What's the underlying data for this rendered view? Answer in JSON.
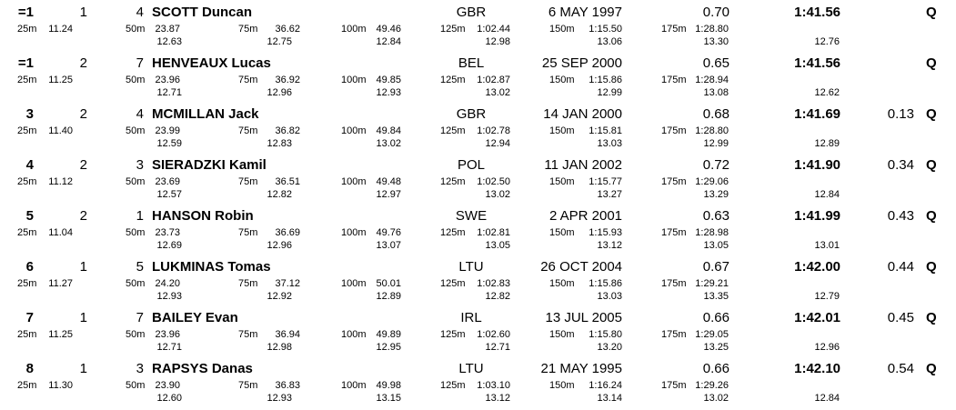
{
  "results": [
    {
      "rank": "=1",
      "heat": "1",
      "lane": "4",
      "name": "SCOTT Duncan",
      "nation": "GBR",
      "birth_date": "6 MAY 1997",
      "reaction": "0.70",
      "time": "1:41.56",
      "behind": "",
      "qualifier": "Q",
      "splits": [
        {
          "dist": "25m",
          "time": "11.24",
          "lap": ""
        },
        {
          "dist": "50m",
          "time": "23.87",
          "lap": "12.63"
        },
        {
          "dist": "75m",
          "time": "36.62",
          "lap": "12.75"
        },
        {
          "dist": "100m",
          "time": "49.46",
          "lap": "12.84"
        },
        {
          "dist": "125m",
          "time": "1:02.44",
          "lap": "12.98"
        },
        {
          "dist": "150m",
          "time": "1:15.50",
          "lap": "13.06"
        },
        {
          "dist": "175m",
          "time": "1:28.80",
          "lap": "13.30"
        },
        {
          "dist": "",
          "time": "",
          "lap": "12.76"
        }
      ]
    },
    {
      "rank": "=1",
      "heat": "2",
      "lane": "7",
      "name": "HENVEAUX Lucas",
      "nation": "BEL",
      "birth_date": "25 SEP 2000",
      "reaction": "0.65",
      "time": "1:41.56",
      "behind": "",
      "qualifier": "Q",
      "splits": [
        {
          "dist": "25m",
          "time": "11.25",
          "lap": ""
        },
        {
          "dist": "50m",
          "time": "23.96",
          "lap": "12.71"
        },
        {
          "dist": "75m",
          "time": "36.92",
          "lap": "12.96"
        },
        {
          "dist": "100m",
          "time": "49.85",
          "lap": "12.93"
        },
        {
          "dist": "125m",
          "time": "1:02.87",
          "lap": "13.02"
        },
        {
          "dist": "150m",
          "time": "1:15.86",
          "lap": "12.99"
        },
        {
          "dist": "175m",
          "time": "1:28.94",
          "lap": "13.08"
        },
        {
          "dist": "",
          "time": "",
          "lap": "12.62"
        }
      ]
    },
    {
      "rank": "3",
      "heat": "2",
      "lane": "4",
      "name": "MCMILLAN Jack",
      "nation": "GBR",
      "birth_date": "14 JAN 2000",
      "reaction": "0.68",
      "time": "1:41.69",
      "behind": "0.13",
      "qualifier": "Q",
      "splits": [
        {
          "dist": "25m",
          "time": "11.40",
          "lap": ""
        },
        {
          "dist": "50m",
          "time": "23.99",
          "lap": "12.59"
        },
        {
          "dist": "75m",
          "time": "36.82",
          "lap": "12.83"
        },
        {
          "dist": "100m",
          "time": "49.84",
          "lap": "13.02"
        },
        {
          "dist": "125m",
          "time": "1:02.78",
          "lap": "12.94"
        },
        {
          "dist": "150m",
          "time": "1:15.81",
          "lap": "13.03"
        },
        {
          "dist": "175m",
          "time": "1:28.80",
          "lap": "12.99"
        },
        {
          "dist": "",
          "time": "",
          "lap": "12.89"
        }
      ]
    },
    {
      "rank": "4",
      "heat": "2",
      "lane": "3",
      "name": "SIERADZKI Kamil",
      "nation": "POL",
      "birth_date": "11 JAN 2002",
      "reaction": "0.72",
      "time": "1:41.90",
      "behind": "0.34",
      "qualifier": "Q",
      "splits": [
        {
          "dist": "25m",
          "time": "11.12",
          "lap": ""
        },
        {
          "dist": "50m",
          "time": "23.69",
          "lap": "12.57"
        },
        {
          "dist": "75m",
          "time": "36.51",
          "lap": "12.82"
        },
        {
          "dist": "100m",
          "time": "49.48",
          "lap": "12.97"
        },
        {
          "dist": "125m",
          "time": "1:02.50",
          "lap": "13.02"
        },
        {
          "dist": "150m",
          "time": "1:15.77",
          "lap": "13.27"
        },
        {
          "dist": "175m",
          "time": "1:29.06",
          "lap": "13.29"
        },
        {
          "dist": "",
          "time": "",
          "lap": "12.84"
        }
      ]
    },
    {
      "rank": "5",
      "heat": "2",
      "lane": "1",
      "name": "HANSON Robin",
      "nation": "SWE",
      "birth_date": "2 APR 2001",
      "reaction": "0.63",
      "time": "1:41.99",
      "behind": "0.43",
      "qualifier": "Q",
      "splits": [
        {
          "dist": "25m",
          "time": "11.04",
          "lap": ""
        },
        {
          "dist": "50m",
          "time": "23.73",
          "lap": "12.69"
        },
        {
          "dist": "75m",
          "time": "36.69",
          "lap": "12.96"
        },
        {
          "dist": "100m",
          "time": "49.76",
          "lap": "13.07"
        },
        {
          "dist": "125m",
          "time": "1:02.81",
          "lap": "13.05"
        },
        {
          "dist": "150m",
          "time": "1:15.93",
          "lap": "13.12"
        },
        {
          "dist": "175m",
          "time": "1:28.98",
          "lap": "13.05"
        },
        {
          "dist": "",
          "time": "",
          "lap": "13.01"
        }
      ]
    },
    {
      "rank": "6",
      "heat": "1",
      "lane": "5",
      "name": "LUKMINAS Tomas",
      "nation": "LTU",
      "birth_date": "26 OCT 2004",
      "reaction": "0.67",
      "time": "1:42.00",
      "behind": "0.44",
      "qualifier": "Q",
      "splits": [
        {
          "dist": "25m",
          "time": "11.27",
          "lap": ""
        },
        {
          "dist": "50m",
          "time": "24.20",
          "lap": "12.93"
        },
        {
          "dist": "75m",
          "time": "37.12",
          "lap": "12.92"
        },
        {
          "dist": "100m",
          "time": "50.01",
          "lap": "12.89"
        },
        {
          "dist": "125m",
          "time": "1:02.83",
          "lap": "12.82"
        },
        {
          "dist": "150m",
          "time": "1:15.86",
          "lap": "13.03"
        },
        {
          "dist": "175m",
          "time": "1:29.21",
          "lap": "13.35"
        },
        {
          "dist": "",
          "time": "",
          "lap": "12.79"
        }
      ]
    },
    {
      "rank": "7",
      "heat": "1",
      "lane": "7",
      "name": "BAILEY Evan",
      "nation": "IRL",
      "birth_date": "13 JUL 2005",
      "reaction": "0.66",
      "time": "1:42.01",
      "behind": "0.45",
      "qualifier": "Q",
      "splits": [
        {
          "dist": "25m",
          "time": "11.25",
          "lap": ""
        },
        {
          "dist": "50m",
          "time": "23.96",
          "lap": "12.71"
        },
        {
          "dist": "75m",
          "time": "36.94",
          "lap": "12.98"
        },
        {
          "dist": "100m",
          "time": "49.89",
          "lap": "12.95"
        },
        {
          "dist": "125m",
          "time": "1:02.60",
          "lap": "12.71"
        },
        {
          "dist": "150m",
          "time": "1:15.80",
          "lap": "13.20"
        },
        {
          "dist": "175m",
          "time": "1:29.05",
          "lap": "13.25"
        },
        {
          "dist": "",
          "time": "",
          "lap": "12.96"
        }
      ]
    },
    {
      "rank": "8",
      "heat": "1",
      "lane": "3",
      "name": "RAPSYS Danas",
      "nation": "LTU",
      "birth_date": "21 MAY 1995",
      "reaction": "0.66",
      "time": "1:42.10",
      "behind": "0.54",
      "qualifier": "Q",
      "splits": [
        {
          "dist": "25m",
          "time": "11.30",
          "lap": ""
        },
        {
          "dist": "50m",
          "time": "23.90",
          "lap": "12.60"
        },
        {
          "dist": "75m",
          "time": "36.83",
          "lap": "12.93"
        },
        {
          "dist": "100m",
          "time": "49.98",
          "lap": "13.15"
        },
        {
          "dist": "125m",
          "time": "1:03.10",
          "lap": "13.12"
        },
        {
          "dist": "150m",
          "time": "1:16.24",
          "lap": "13.14"
        },
        {
          "dist": "175m",
          "time": "1:29.26",
          "lap": "13.02"
        },
        {
          "dist": "",
          "time": "",
          "lap": "12.84"
        }
      ]
    }
  ]
}
